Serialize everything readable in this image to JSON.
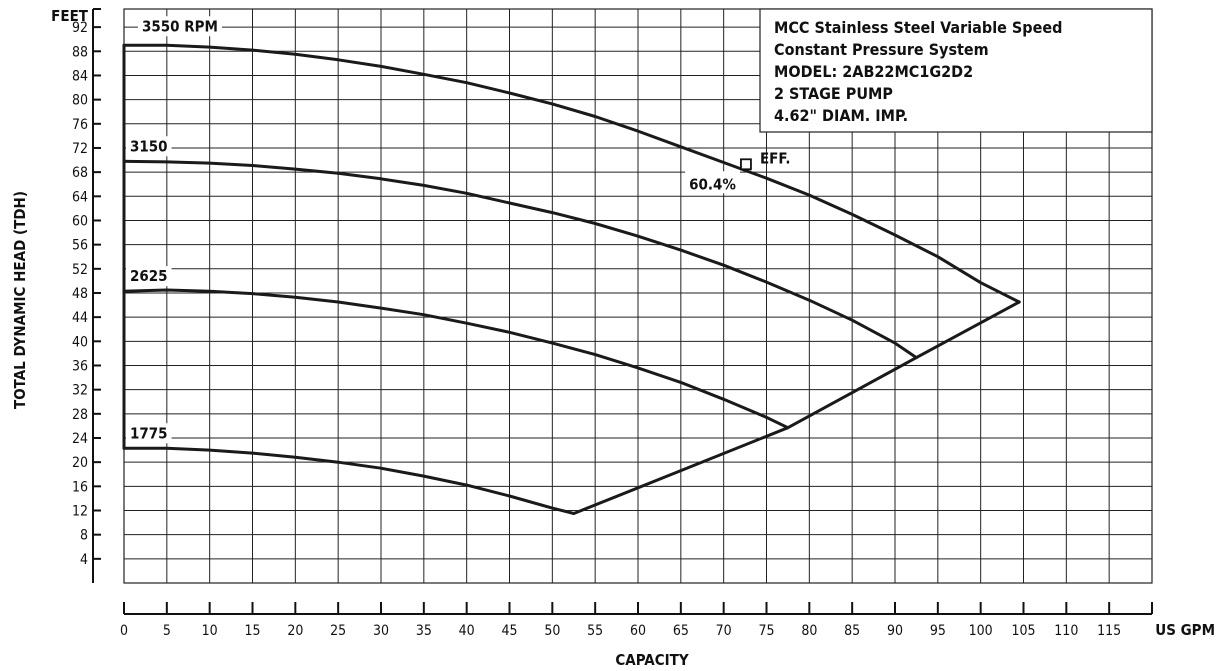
{
  "chart_data": {
    "type": "line",
    "info_box": [
      "MCC Stainless Steel Variable Speed",
      "Constant Pressure System",
      "MODEL: 2AB22MC1G2D2",
      "2 STAGE PUMP",
      "4.62\" DIAM. IMP."
    ],
    "xlabel": "CAPACITY",
    "x_unit": "US GPM",
    "ylabel": "TOTAL DYNAMIC HEAD (TDH)",
    "y_unit": "FEET",
    "xlim": [
      0,
      120
    ],
    "ylim": [
      0,
      95
    ],
    "x_ticks": [
      0,
      5,
      10,
      15,
      20,
      25,
      30,
      35,
      40,
      45,
      50,
      55,
      60,
      65,
      70,
      75,
      80,
      85,
      90,
      95,
      100,
      105,
      110,
      115
    ],
    "y_ticks": [
      4,
      8,
      12,
      16,
      20,
      24,
      28,
      32,
      36,
      40,
      44,
      48,
      52,
      56,
      60,
      64,
      68,
      72,
      76,
      80,
      84,
      88,
      92
    ],
    "grid": true,
    "series": [
      {
        "name": "3550 RPM",
        "x": [
          0,
          5,
          10,
          15,
          20,
          25,
          30,
          35,
          40,
          45,
          50,
          55,
          60,
          65,
          70,
          75,
          80,
          85,
          90,
          95,
          100,
          104.5
        ],
        "y": [
          89,
          89,
          88.7,
          88.2,
          87.5,
          86.6,
          85.5,
          84.2,
          82.8,
          81.1,
          79.3,
          77.2,
          74.8,
          72.2,
          69.6,
          67,
          64.2,
          61,
          57.6,
          54,
          49.7,
          46.5
        ]
      },
      {
        "name": "3150",
        "x": [
          0,
          5,
          10,
          15,
          20,
          25,
          30,
          35,
          40,
          45,
          50,
          55,
          60,
          65,
          70,
          75,
          80,
          85,
          90,
          92.5
        ],
        "y": [
          69.8,
          69.7,
          69.5,
          69.1,
          68.5,
          67.8,
          66.9,
          65.8,
          64.5,
          62.9,
          61.3,
          59.5,
          57.4,
          55.1,
          52.6,
          49.8,
          46.8,
          43.5,
          39.7,
          37.3
        ]
      },
      {
        "name": "2625",
        "x": [
          0,
          5,
          10,
          15,
          20,
          25,
          30,
          35,
          40,
          45,
          50,
          55,
          60,
          65,
          70,
          75,
          77.5
        ],
        "y": [
          48.3,
          48.5,
          48.3,
          47.9,
          47.3,
          46.5,
          45.5,
          44.4,
          43,
          41.5,
          39.7,
          37.8,
          35.6,
          33.2,
          30.4,
          27.4,
          25.7
        ]
      },
      {
        "name": "1775",
        "x": [
          0,
          5,
          10,
          15,
          20,
          25,
          30,
          35,
          40,
          45,
          50,
          52.5
        ],
        "y": [
          22.3,
          22.3,
          22,
          21.5,
          20.8,
          20,
          19,
          17.7,
          16.2,
          14.4,
          12.4,
          11.5
        ]
      },
      {
        "name": "",
        "x": [
          52.5,
          77.5,
          92.5,
          104.5
        ],
        "y": [
          11.5,
          25.7,
          37.3,
          46.5
        ]
      },
      {
        "name": "",
        "x": [
          0,
          0
        ],
        "y": [
          22.3,
          89
        ]
      }
    ],
    "annotations": [
      {
        "text": "EFF.",
        "x": 72.6,
        "y": 69.3
      },
      {
        "text": "60.4%",
        "x": 72.6,
        "y": 69.3
      }
    ]
  }
}
